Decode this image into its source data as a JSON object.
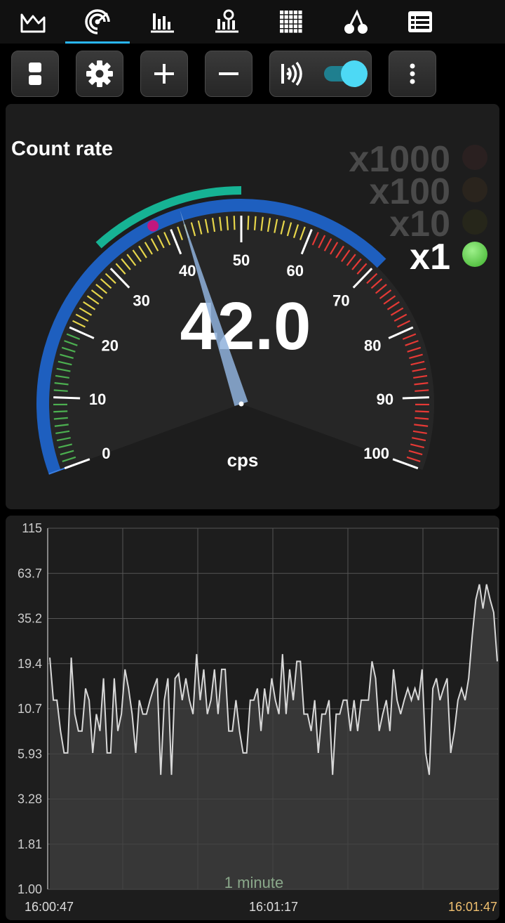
{
  "tabs": [
    {
      "name": "tab-dashboard",
      "icon": "waveform-icon"
    },
    {
      "name": "tab-gauge",
      "icon": "gauge-icon",
      "active": true
    },
    {
      "name": "tab-histogram",
      "icon": "histogram-icon"
    },
    {
      "name": "tab-spectrum",
      "icon": "spectrum-icon"
    },
    {
      "name": "tab-map",
      "icon": "grid-icon"
    },
    {
      "name": "tab-isotopes",
      "icon": "cherries-icon"
    },
    {
      "name": "tab-list",
      "icon": "list-icon"
    }
  ],
  "toolbar": {
    "buttons": [
      {
        "name": "split-view-button",
        "icon": "split-icon"
      },
      {
        "name": "settings-button",
        "icon": "gear-icon"
      },
      {
        "name": "zoom-in-button",
        "icon": "plus-icon"
      },
      {
        "name": "zoom-out-button",
        "icon": "minus-icon"
      },
      {
        "name": "connection-toggle",
        "icon": "radio-wave-icon"
      },
      {
        "name": "more-button",
        "icon": "more-vert-icon"
      }
    ],
    "connection_enabled": true
  },
  "gauge": {
    "title": "Count rate",
    "value": "42.0",
    "unit": "cps",
    "reading": 42.0,
    "min": 0,
    "max": 100,
    "major_labels": [
      "0",
      "10",
      "20",
      "30",
      "40",
      "50",
      "60",
      "70",
      "80",
      "90",
      "100"
    ],
    "multipliers": [
      {
        "label": "x1000",
        "active": false
      },
      {
        "label": "x100",
        "active": false
      },
      {
        "label": "x10",
        "active": false
      },
      {
        "label": "x1",
        "active": true
      }
    ],
    "colors": {
      "green": "#4caf50",
      "yellow": "#e6d54a",
      "red": "#e53935",
      "outer_arc": "#1e5fbf",
      "range_arc": "#16b394",
      "marker": "#c2187e"
    }
  },
  "graph": {
    "y_labels": [
      "115",
      "63.7",
      "35.2",
      "19.4",
      "10.7",
      "5.93",
      "3.28",
      "1.81",
      "1.00"
    ],
    "x_labels": [
      "16:00:47",
      "16:01:17",
      "16:01:47"
    ],
    "window_label": "1 minute",
    "highlight_color": "#f0c070"
  },
  "chart_data": {
    "type": "line",
    "title": "",
    "xlabel": "",
    "ylabel": "",
    "y_scale": "log",
    "ylim": [
      1.0,
      115
    ],
    "x_range": [
      "16:00:47",
      "16:01:47"
    ],
    "series": [
      {
        "values": [
          21,
          12,
          12,
          8,
          6,
          6,
          21,
          10,
          8,
          8,
          14,
          12,
          6,
          10,
          8,
          16,
          6,
          6,
          16,
          8,
          10,
          18,
          14,
          10,
          6,
          12,
          10,
          10,
          12,
          14,
          16,
          4.5,
          12,
          16,
          4.5,
          16,
          17,
          12,
          16,
          12,
          10,
          22,
          12,
          18,
          10,
          12,
          18,
          10,
          18,
          18,
          8,
          8,
          12,
          8,
          6,
          6,
          12,
          12,
          14,
          8,
          14,
          10,
          16,
          12,
          10,
          22,
          10,
          18,
          12,
          20,
          20,
          10,
          10,
          8,
          12,
          6,
          10,
          10,
          12,
          4.5,
          10,
          10,
          12,
          12,
          8,
          12,
          8,
          12,
          12,
          12,
          20,
          16,
          8,
          10,
          12,
          8,
          18,
          12,
          10,
          12,
          14,
          12,
          14,
          12,
          18,
          6,
          4.5,
          14,
          16,
          12,
          14,
          16,
          6,
          8,
          12,
          14,
          12,
          16,
          28,
          45,
          55,
          40,
          55,
          45,
          38,
          20
        ]
      }
    ]
  }
}
